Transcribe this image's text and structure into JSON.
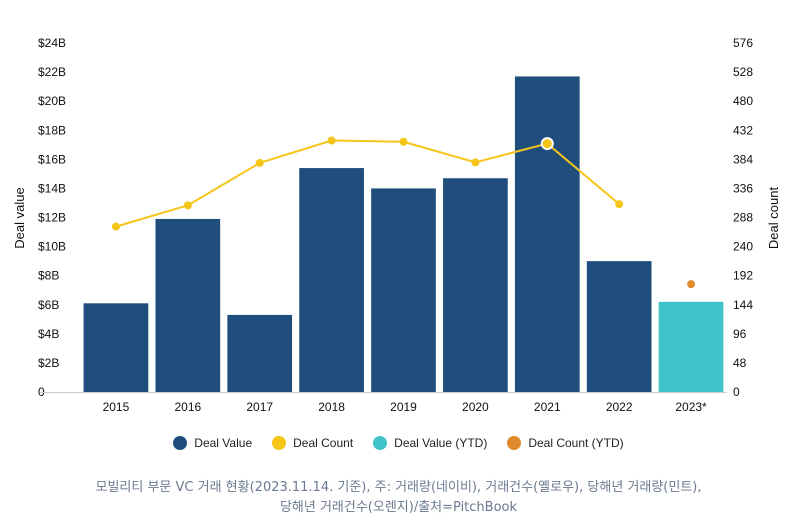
{
  "chart_data": {
    "type": "bar",
    "categories": [
      "2015",
      "2016",
      "2017",
      "2018",
      "2019",
      "2020",
      "2021",
      "2022",
      "2023*"
    ],
    "series": [
      {
        "name": "Deal Value",
        "axis": "left",
        "kind": "bar",
        "color": "#1f4e7d",
        "values": [
          6.1,
          11.9,
          5.3,
          15.4,
          14.0,
          14.7,
          21.7,
          9.0,
          null
        ]
      },
      {
        "name": "Deal Value (YTD)",
        "axis": "left",
        "kind": "bar",
        "color": "#3fc3c8",
        "values": [
          null,
          null,
          null,
          null,
          null,
          null,
          null,
          null,
          6.2
        ]
      },
      {
        "name": "Deal Count",
        "axis": "right",
        "kind": "line",
        "color": "#f5c518",
        "values": [
          273,
          308,
          378,
          415,
          413,
          379,
          410,
          310,
          null
        ]
      },
      {
        "name": "Deal Count (YTD)",
        "axis": "right",
        "kind": "point",
        "color": "#e08a2c",
        "values": [
          null,
          null,
          null,
          null,
          null,
          null,
          null,
          null,
          178
        ]
      }
    ],
    "ylabel": "Deal value",
    "ylabel_right": "Deal count",
    "ylim": [
      0,
      24
    ],
    "yticks": [
      "0",
      "$2B",
      "$4B",
      "$6B",
      "$8B",
      "$10B",
      "$12B",
      "$14B",
      "$16B",
      "$18B",
      "$20B",
      "$22B",
      "$24B"
    ],
    "ylim_right": [
      0,
      576
    ],
    "yticks_right": [
      "0",
      "48",
      "96",
      "144",
      "192",
      "240",
      "288",
      "336",
      "384",
      "432",
      "480",
      "528",
      "576"
    ],
    "grid": false,
    "legend_position": "bottom"
  },
  "caption": {
    "line1": "모빌리티 부문 VC 거래 현황(2023.11.14. 기준), 주: 거래량(네이비), 거래건수(옐로우), 당해년 거래량(민트),",
    "line2": "당해년 거래건수(오렌지)/출처=PitchBook"
  }
}
